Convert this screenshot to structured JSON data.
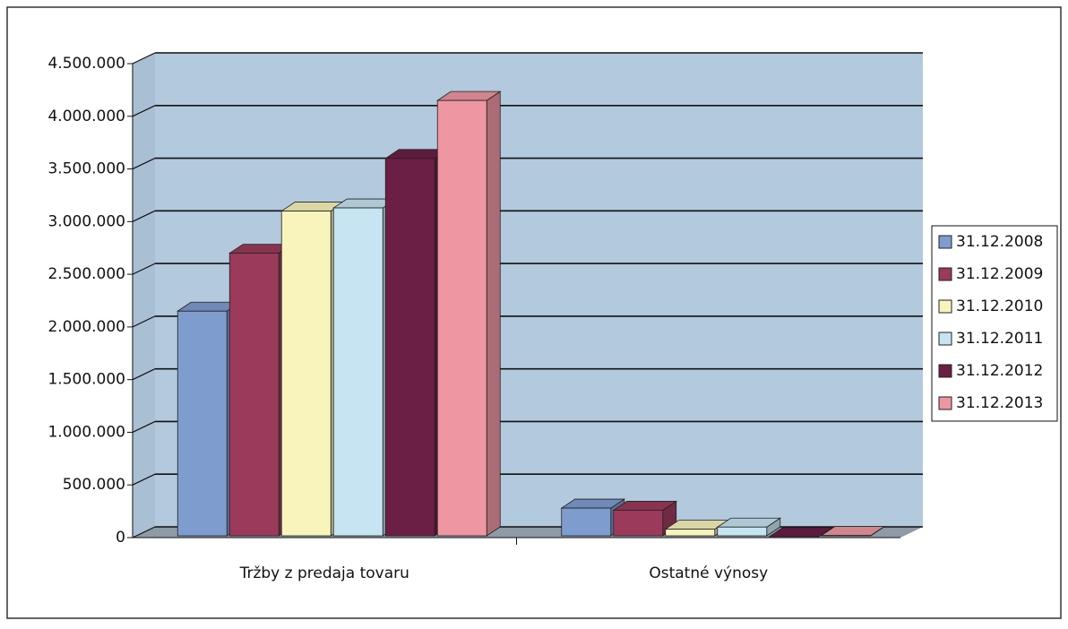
{
  "chart_data": {
    "type": "bar3d",
    "categories": [
      "Tržby z predaja tovaru",
      "Ostatné výnosy"
    ],
    "series": [
      {
        "name": "31.12.2008",
        "color": "#7f9ccf",
        "values": [
          2150000,
          280000
        ]
      },
      {
        "name": "31.12.2009",
        "color": "#9b3a5a",
        "values": [
          2700000,
          260000
        ]
      },
      {
        "name": "31.12.2010",
        "color": "#f8f4bc",
        "values": [
          3100000,
          80000
        ]
      },
      {
        "name": "31.12.2011",
        "color": "#c6e4f1",
        "values": [
          3130000,
          100000
        ]
      },
      {
        "name": "31.12.2012",
        "color": "#6b1f45",
        "values": [
          3600000,
          10000
        ]
      },
      {
        "name": "31.12.2013",
        "color": "#ef96a3",
        "values": [
          4150000,
          20000
        ]
      }
    ],
    "ylim": [
      0,
      4500000
    ],
    "yticks": [
      0,
      {
        "value": 500000,
        "label": "500.000"
      },
      {
        "value": 1000000,
        "label": "1.000.000"
      },
      {
        "value": 1500000,
        "label": "1.500.000"
      },
      {
        "value": 2000000,
        "label": "2.000.000"
      },
      {
        "value": 2500000,
        "label": "2.500.000"
      },
      {
        "value": 3000000,
        "label": "3.000.000"
      },
      {
        "value": 3500000,
        "label": "3.500.000"
      },
      {
        "value": 4000000,
        "label": "4.000.000"
      },
      {
        "value": 4500000,
        "label": "4.500.000"
      }
    ],
    "grid": true,
    "legend": "right"
  }
}
